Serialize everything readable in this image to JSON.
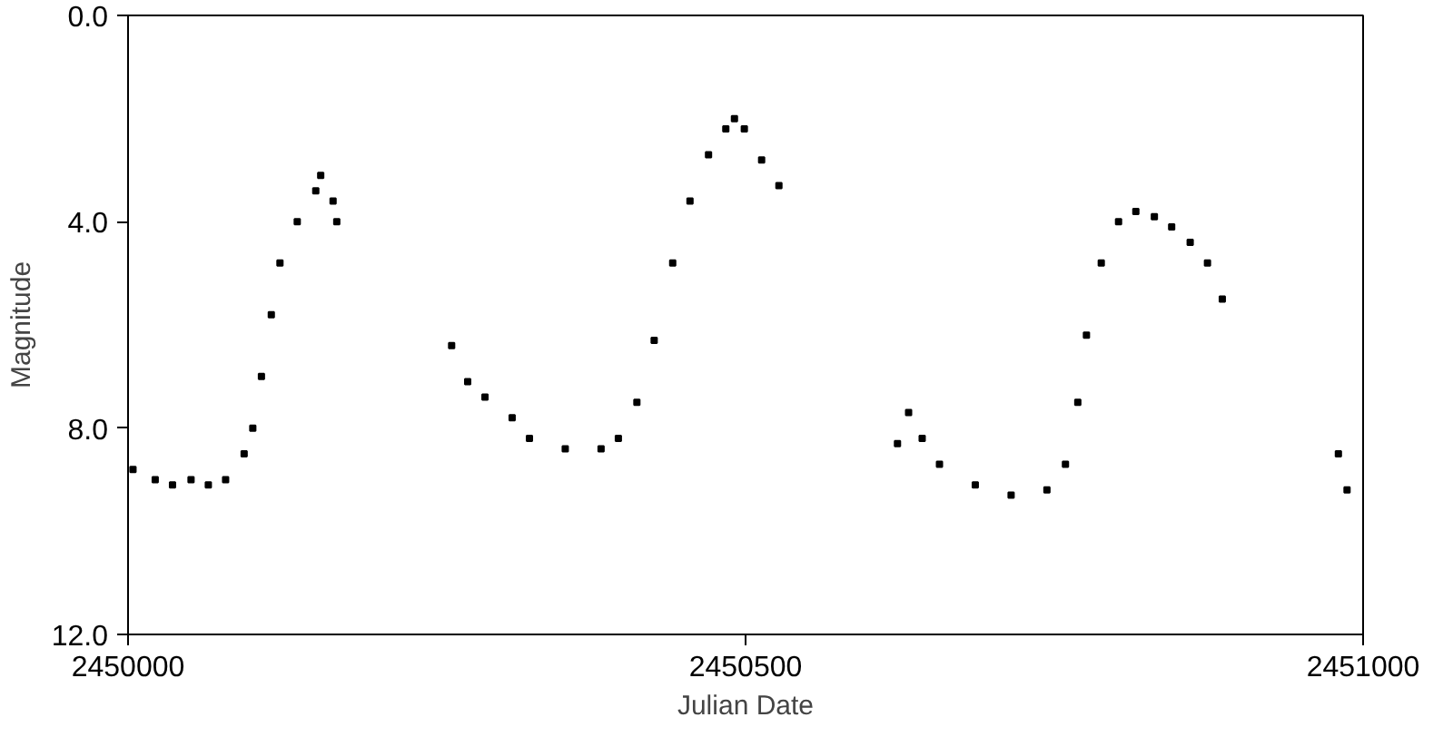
{
  "chart_data": {
    "type": "scatter",
    "xlabel": "Julian Date",
    "ylabel": "Magnitude",
    "marker": "square",
    "xlim": [
      2450000,
      2451000
    ],
    "ylim": [
      12,
      0
    ],
    "xticks": [
      2450000,
      2450500,
      2451000
    ],
    "yticks": [
      {
        "value": 0,
        "label": "0.0"
      },
      {
        "value": 4,
        "label": "4.0"
      },
      {
        "value": 8,
        "label": "8.0"
      },
      {
        "value": 12,
        "label": "12.0"
      }
    ],
    "series": [
      {
        "color": "#000000",
        "x": [
          2450004,
          2450022,
          2450036,
          2450051,
          2450065,
          2450079,
          2450094,
          2450101,
          2450108,
          2450116,
          2450123,
          2450137,
          2450152,
          2450156,
          2450166,
          2450169,
          2450262,
          2450275,
          2450289,
          2450311,
          2450325,
          2450354,
          2450383,
          2450397,
          2450412,
          2450426,
          2450441,
          2450455,
          2450470,
          2450484,
          2450491,
          2450499,
          2450513,
          2450527,
          2450623,
          2450632,
          2450643,
          2450657,
          2450686,
          2450715,
          2450744,
          2450759,
          2450769,
          2450776,
          2450788,
          2450802,
          2450816,
          2450831,
          2450845,
          2450860,
          2450874,
          2450886,
          2450980,
          2450987
        ],
        "values": [
          8.8,
          9.0,
          9.1,
          9.0,
          9.1,
          9.0,
          8.5,
          8.0,
          7.0,
          5.8,
          4.8,
          4.0,
          3.4,
          3.1,
          3.6,
          4.0,
          6.4,
          7.1,
          7.4,
          7.8,
          8.2,
          8.4,
          8.4,
          8.2,
          7.5,
          6.3,
          4.8,
          3.6,
          2.7,
          2.2,
          2.0,
          2.2,
          2.8,
          3.3,
          8.3,
          7.7,
          8.2,
          8.7,
          9.1,
          9.3,
          9.2,
          8.7,
          7.5,
          6.2,
          4.8,
          4.0,
          3.8,
          3.9,
          4.1,
          4.4,
          4.8,
          5.5,
          8.5,
          9.2
        ]
      }
    ]
  }
}
